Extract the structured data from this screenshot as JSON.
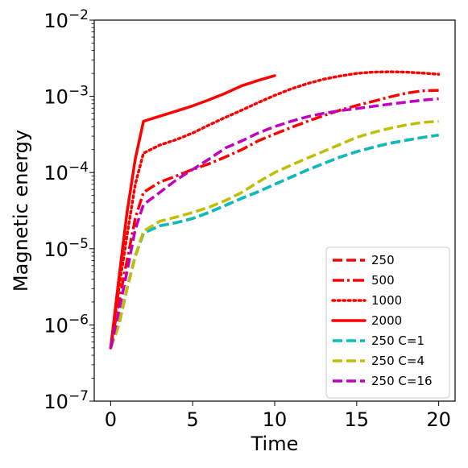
{
  "chart_data": {
    "type": "line",
    "xlabel": "Time",
    "ylabel": "Magnetic energy",
    "xlim": [
      -1,
      21
    ],
    "ylim": [
      1e-07,
      0.01
    ],
    "yscale": "log",
    "xticks": [
      0,
      5,
      10,
      15,
      20
    ],
    "yticks": [
      {
        "value": 1e-07,
        "mantissa": "10",
        "exponent": "−7"
      },
      {
        "value": 1e-06,
        "mantissa": "10",
        "exponent": "−6"
      },
      {
        "value": 1e-05,
        "mantissa": "10",
        "exponent": "−5"
      },
      {
        "value": 0.0001,
        "mantissa": "10",
        "exponent": "−4"
      },
      {
        "value": 0.001,
        "mantissa": "10",
        "exponent": "−3"
      },
      {
        "value": 0.01,
        "mantissa": "10",
        "exponent": "−2"
      }
    ],
    "grid": false,
    "legend_position": "lower-right",
    "series": [
      {
        "name": "250",
        "color": "#ff0000",
        "style": "dashed",
        "x": [
          0,
          0.5,
          1,
          1.5,
          2,
          3,
          4,
          5,
          6,
          7,
          8,
          9,
          10,
          11,
          12,
          13,
          14,
          15,
          16,
          17,
          18,
          19,
          20
        ],
        "y": [
          5e-07,
          1e-06,
          3e-06,
          8e-06,
          1.6e-05,
          2e-05,
          2.2e-05,
          2.5e-05,
          3e-05,
          3.7e-05,
          4.6e-05,
          5.6e-05,
          7e-05,
          8.7e-05,
          0.000108,
          0.000132,
          0.00016,
          0.000188,
          0.000215,
          0.000242,
          0.000265,
          0.000288,
          0.00031
        ]
      },
      {
        "name": "500",
        "color": "#ff0000",
        "style": "dashdot",
        "x": [
          0,
          0.5,
          1,
          1.5,
          2,
          3,
          4,
          5,
          6,
          7,
          8,
          9,
          10,
          11,
          12,
          13,
          14,
          15,
          16,
          17,
          18,
          19,
          20
        ],
        "y": [
          5e-07,
          2e-06,
          7e-06,
          2.5e-05,
          5.5e-05,
          7.5e-05,
          9e-05,
          0.00011,
          0.00013,
          0.00016,
          0.0002,
          0.00026,
          0.00032,
          0.00039,
          0.00047,
          0.00056,
          0.00066,
          0.00076,
          0.00086,
          0.00098,
          0.0011,
          0.00118,
          0.0012
        ]
      },
      {
        "name": "1000",
        "color": "#ff0000",
        "style": "dotted",
        "x": [
          0,
          0.5,
          1,
          1.5,
          2,
          3,
          4,
          5,
          6,
          7,
          8,
          9,
          10,
          11,
          12,
          13,
          14,
          15,
          16,
          17,
          18,
          19,
          20
        ],
        "y": [
          5e-07,
          3e-06,
          1.5e-05,
          7e-05,
          0.00018,
          0.00023,
          0.00027,
          0.00033,
          0.00042,
          0.00053,
          0.00066,
          0.00083,
          0.00103,
          0.00125,
          0.00147,
          0.00168,
          0.00185,
          0.002,
          0.00208,
          0.0021,
          0.00208,
          0.00202,
          0.00195
        ]
      },
      {
        "name": "2000",
        "color": "#ff0000",
        "style": "solid",
        "x": [
          0,
          0.5,
          1,
          1.5,
          2,
          3,
          4,
          5,
          6,
          7,
          8,
          9,
          10
        ],
        "y": [
          5e-07,
          4e-06,
          3e-05,
          0.00015,
          0.00047,
          0.00055,
          0.00064,
          0.00075,
          0.0009,
          0.0011,
          0.00138,
          0.00162,
          0.00187
        ]
      },
      {
        "name": "250 C=1",
        "color": "#00bfbf",
        "style": "dashed",
        "x": [
          0,
          0.5,
          1,
          1.5,
          2,
          3,
          4,
          5,
          6,
          7,
          8,
          9,
          10,
          11,
          12,
          13,
          14,
          15,
          16,
          17,
          18,
          19,
          20
        ],
        "y": [
          5e-07,
          1e-06,
          3e-06,
          8e-06,
          1.6e-05,
          2e-05,
          2.2e-05,
          2.5e-05,
          3e-05,
          3.7e-05,
          4.6e-05,
          5.6e-05,
          7e-05,
          8.7e-05,
          0.000108,
          0.000132,
          0.00016,
          0.000188,
          0.000215,
          0.000242,
          0.000265,
          0.000288,
          0.00031
        ]
      },
      {
        "name": "250 C=4",
        "color": "#bfbf00",
        "style": "dashed",
        "x": [
          0,
          0.5,
          1,
          1.5,
          2,
          3,
          4,
          5,
          6,
          7,
          8,
          9,
          10,
          11,
          12,
          13,
          14,
          15,
          16,
          17,
          18,
          19,
          20
        ],
        "y": [
          5e-07,
          1e-06,
          3e-06,
          8e-06,
          1.7e-05,
          2.3e-05,
          2.6e-05,
          3e-05,
          3.5e-05,
          4.3e-05,
          5.5e-05,
          7.5e-05,
          0.0001,
          0.000125,
          0.000155,
          0.00019,
          0.000235,
          0.00029,
          0.000335,
          0.00038,
          0.00042,
          0.000455,
          0.00047
        ]
      },
      {
        "name": "250 C=16",
        "color": "#bf00bf",
        "style": "dashed",
        "x": [
          0,
          0.5,
          1,
          1.5,
          2,
          3,
          4,
          5,
          6,
          7,
          8,
          9,
          10,
          11,
          12,
          13,
          14,
          15,
          16,
          17,
          18,
          19,
          20
        ],
        "y": [
          5e-07,
          1.5e-06,
          5e-06,
          1.8e-05,
          3.8e-05,
          5.5e-05,
          8e-05,
          0.00011,
          0.00015,
          0.00021,
          0.00026,
          0.00033,
          0.0004,
          0.00047,
          0.00054,
          0.0006,
          0.00065,
          0.00069,
          0.00074,
          0.00079,
          0.00084,
          0.00089,
          0.00093
        ]
      }
    ]
  }
}
